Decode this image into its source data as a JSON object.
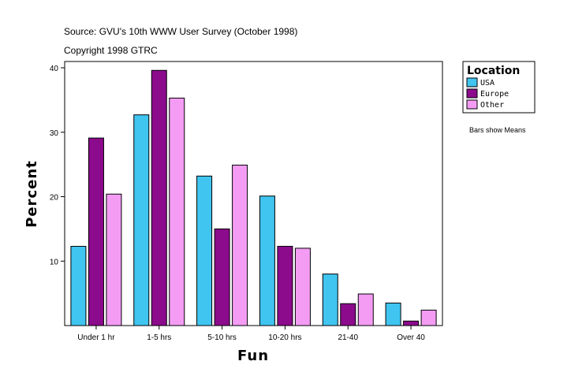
{
  "header": {
    "source": "Source: GVU's 10th WWW User Survey (October 1998)",
    "copyright": "Copyright 1998 GTRC"
  },
  "legend": {
    "title": "Location",
    "note": "Bars show Means"
  },
  "chart_data": {
    "type": "bar",
    "xlabel": "Fun",
    "ylabel": "Percent",
    "categories": [
      "Under 1 hr",
      "1-5 hrs",
      "5-10 hrs",
      "10-20 hrs",
      "21-40",
      "Over 40"
    ],
    "series": [
      {
        "name": "USA",
        "color": "#40c4f0",
        "values": [
          12.3,
          32.7,
          23.2,
          20.1,
          8.0,
          3.5
        ]
      },
      {
        "name": "Europe",
        "color": "#8c0a8c",
        "values": [
          29.1,
          39.6,
          15.0,
          12.3,
          3.4,
          0.7
        ]
      },
      {
        "name": "Other",
        "color": "#f49cf4",
        "values": [
          20.4,
          35.3,
          24.9,
          12.0,
          4.9,
          2.4
        ]
      }
    ],
    "ylim": [
      0,
      40
    ],
    "yticks": [
      10,
      20,
      30,
      40
    ],
    "grid": false,
    "legend_position": "top-right"
  }
}
